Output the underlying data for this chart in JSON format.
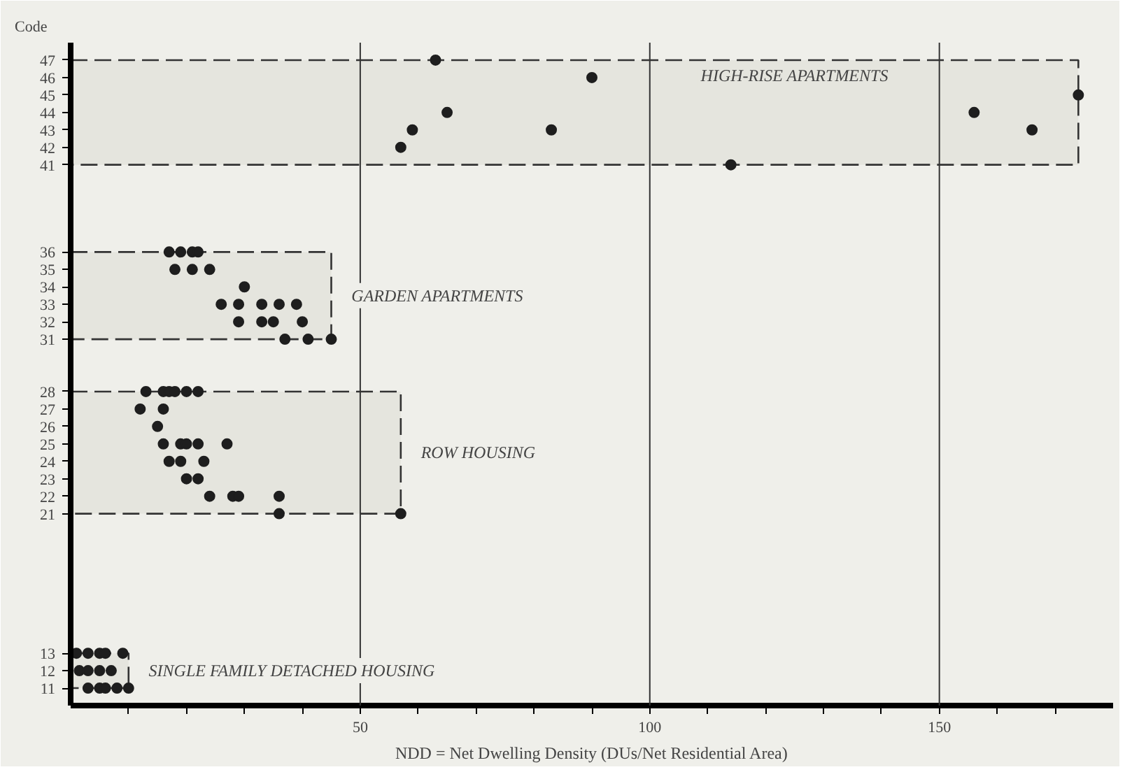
{
  "chart_data": {
    "type": "scatter",
    "ylabel": "Code",
    "xlabel": "NDD = Net Dwelling Density (DUs/Net Residential Area)",
    "xlim": [
      0,
      180
    ],
    "ylim": [
      10,
      48
    ],
    "xticks": [
      {
        "value": 10,
        "label": null
      },
      {
        "value": 20,
        "label": null
      },
      {
        "value": 30,
        "label": null
      },
      {
        "value": 40,
        "label": null
      },
      50,
      {
        "value": 60,
        "label": null
      },
      {
        "value": 70,
        "label": null
      },
      {
        "value": 80,
        "label": null
      },
      {
        "value": 90,
        "label": null
      },
      100,
      {
        "value": 110,
        "label": null
      },
      {
        "value": 120,
        "label": null
      },
      {
        "value": 130,
        "label": null
      },
      {
        "value": 140,
        "label": null
      },
      150,
      {
        "value": 160,
        "label": null
      },
      {
        "value": 170,
        "label": null
      }
    ],
    "yticks": [
      11,
      12,
      13,
      21,
      22,
      23,
      24,
      25,
      26,
      27,
      28,
      31,
      32,
      33,
      34,
      35,
      36,
      41,
      42,
      43,
      44,
      45,
      46,
      47
    ],
    "marker": "circle",
    "grid": false,
    "ref_lines": [
      {
        "axis": "x",
        "value": 50,
        "color": "#333333"
      },
      {
        "axis": "x",
        "value": 100,
        "color": "#333333"
      },
      {
        "axis": "x",
        "value": 150,
        "color": "#333333"
      }
    ],
    "bands": [
      {
        "axis": "y",
        "from": 41,
        "to": 47,
        "label": "HIGH-RISE APARTMENTS",
        "color": "#e5e5de"
      },
      {
        "axis": "y",
        "from": 31,
        "to": 36,
        "label": "GARDEN APARTMENTS",
        "color": "#e5e5de"
      },
      {
        "axis": "y",
        "from": 21,
        "to": 28,
        "label": "ROW HOUSING",
        "color": "#e5e5de"
      },
      {
        "axis": "y",
        "from": 11,
        "to": 13,
        "label": "SINGLE FAMILY DETACHED HOUSING",
        "color": "#e5e5de"
      }
    ],
    "series": [
      {
        "color": "#1e1e1e",
        "x": [
          63,
          90,
          174,
          65,
          156,
          59,
          83,
          166,
          57,
          114,
          17,
          19,
          21,
          22,
          18,
          21,
          24,
          30,
          26,
          29,
          33,
          36,
          39,
          29,
          33,
          35,
          40,
          37,
          41,
          45,
          13,
          16,
          17,
          18,
          20,
          22,
          12,
          16,
          15,
          16,
          19,
          20,
          22,
          27,
          17,
          19,
          23,
          20,
          22,
          24,
          28,
          29,
          36,
          36,
          57,
          1,
          3,
          5,
          6,
          9,
          1.5,
          3,
          5,
          7,
          3,
          5,
          6,
          8,
          10
        ],
        "values": [
          47,
          46,
          45,
          44,
          44,
          43,
          43,
          43,
          42,
          41,
          36,
          36,
          36,
          36,
          35,
          35,
          35,
          34,
          33,
          33,
          33,
          33,
          33,
          32,
          32,
          32,
          32,
          31,
          31,
          31,
          28,
          28,
          28,
          28,
          28,
          28,
          27,
          27,
          26,
          25,
          25,
          25,
          25,
          25,
          24,
          24,
          24,
          23,
          23,
          22,
          22,
          22,
          22,
          21,
          21,
          13,
          13,
          13,
          13,
          13,
          12,
          12,
          12,
          12,
          11,
          11,
          11,
          11,
          11
        ]
      }
    ]
  }
}
